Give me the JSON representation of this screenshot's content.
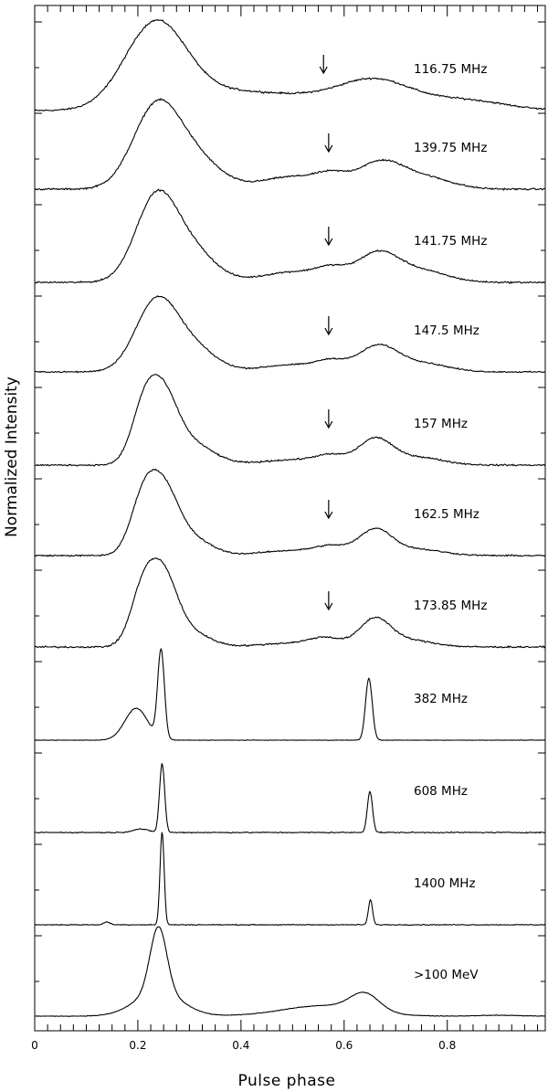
{
  "chart_data": {
    "type": "line",
    "xlabel": "Pulse phase",
    "ylabel": "Normalized Intensity",
    "xlim": [
      0,
      0.99
    ],
    "x_ticks": [
      "0",
      "0.2",
      "0.4",
      "0.6",
      "0.8"
    ],
    "x_tick_values": [
      0,
      0.2,
      0.4,
      0.6,
      0.8
    ],
    "series": [
      {
        "name": "116.75 MHz",
        "arrow_phase": 0.56,
        "noise": 0.012,
        "components": [
          [
            0.235,
            0.06,
            1.0
          ],
          [
            0.38,
            0.08,
            0.18
          ],
          [
            0.52,
            0.08,
            0.12
          ],
          [
            0.66,
            0.07,
            0.33
          ],
          [
            0.83,
            0.08,
            0.12
          ]
        ],
        "x": [
          0,
          0.1,
          0.16,
          0.2,
          0.24,
          0.3,
          0.35,
          0.42,
          0.5,
          0.57,
          0.62,
          0.66,
          0.72,
          0.8,
          0.9,
          0.98
        ],
        "y": [
          0.0,
          0.04,
          0.55,
          0.9,
          1.0,
          0.86,
          0.58,
          0.38,
          0.3,
          0.28,
          0.33,
          0.38,
          0.33,
          0.22,
          0.1,
          0.04
        ]
      },
      {
        "name": "139.75 MHz",
        "arrow_phase": 0.57,
        "noise": 0.012,
        "components": [
          [
            0.235,
            0.045,
            0.95
          ],
          [
            0.31,
            0.05,
            0.35
          ],
          [
            0.5,
            0.06,
            0.15
          ],
          [
            0.575,
            0.03,
            0.12
          ],
          [
            0.67,
            0.045,
            0.32
          ],
          [
            0.76,
            0.05,
            0.13
          ]
        ],
        "x": [
          0,
          0.1,
          0.15,
          0.2,
          0.245,
          0.3,
          0.35,
          0.42,
          0.5,
          0.57,
          0.62,
          0.66,
          0.72,
          0.8,
          0.9,
          0.98
        ],
        "y": [
          0.0,
          0.01,
          0.3,
          0.8,
          1.0,
          0.75,
          0.45,
          0.22,
          0.17,
          0.2,
          0.2,
          0.36,
          0.28,
          0.14,
          0.04,
          0.0
        ]
      },
      {
        "name": "141.75 MHz",
        "arrow_phase": 0.57,
        "noise": 0.011,
        "components": [
          [
            0.235,
            0.04,
            0.95
          ],
          [
            0.305,
            0.045,
            0.35
          ],
          [
            0.5,
            0.06,
            0.12
          ],
          [
            0.575,
            0.03,
            0.12
          ],
          [
            0.665,
            0.04,
            0.33
          ],
          [
            0.75,
            0.05,
            0.13
          ]
        ],
        "x": [
          0,
          0.12,
          0.16,
          0.2,
          0.245,
          0.3,
          0.35,
          0.42,
          0.5,
          0.57,
          0.62,
          0.66,
          0.72,
          0.8,
          0.9,
          0.98
        ],
        "y": [
          0.0,
          0.0,
          0.5,
          0.85,
          1.0,
          0.72,
          0.4,
          0.18,
          0.12,
          0.17,
          0.15,
          0.35,
          0.27,
          0.12,
          0.03,
          0.0
        ]
      },
      {
        "name": "147.5 MHz",
        "arrow_phase": 0.57,
        "noise": 0.011,
        "components": [
          [
            0.235,
            0.04,
            0.95
          ],
          [
            0.305,
            0.045,
            0.33
          ],
          [
            0.5,
            0.06,
            0.1
          ],
          [
            0.575,
            0.028,
            0.12
          ],
          [
            0.665,
            0.038,
            0.35
          ],
          [
            0.75,
            0.05,
            0.12
          ]
        ],
        "x": [
          0,
          0.12,
          0.16,
          0.2,
          0.245,
          0.3,
          0.35,
          0.42,
          0.5,
          0.57,
          0.62,
          0.66,
          0.72,
          0.8,
          0.9,
          0.98
        ],
        "y": [
          0.0,
          0.0,
          0.45,
          0.85,
          1.0,
          0.7,
          0.38,
          0.16,
          0.12,
          0.17,
          0.14,
          0.36,
          0.27,
          0.11,
          0.03,
          0.0
        ]
      },
      {
        "name": "157 MHz",
        "arrow_phase": 0.57,
        "noise": 0.011,
        "components": [
          [
            0.212,
            0.025,
            0.78
          ],
          [
            0.25,
            0.028,
            0.85
          ],
          [
            0.3,
            0.045,
            0.33
          ],
          [
            0.5,
            0.06,
            0.08
          ],
          [
            0.575,
            0.03,
            0.12
          ],
          [
            0.66,
            0.032,
            0.38
          ],
          [
            0.74,
            0.05,
            0.12
          ]
        ],
        "x": [
          0,
          0.12,
          0.16,
          0.21,
          0.23,
          0.25,
          0.3,
          0.35,
          0.42,
          0.5,
          0.57,
          0.62,
          0.66,
          0.72,
          0.8,
          0.98
        ],
        "y": [
          0.0,
          0.0,
          0.45,
          0.88,
          0.85,
          1.0,
          0.62,
          0.32,
          0.12,
          0.1,
          0.14,
          0.12,
          0.38,
          0.26,
          0.1,
          0.0
        ]
      },
      {
        "name": "162.5 MHz",
        "arrow_phase": 0.57,
        "noise": 0.011,
        "components": [
          [
            0.21,
            0.025,
            0.82
          ],
          [
            0.25,
            0.028,
            0.9
          ],
          [
            0.3,
            0.04,
            0.28
          ],
          [
            0.5,
            0.06,
            0.08
          ],
          [
            0.575,
            0.03,
            0.12
          ],
          [
            0.66,
            0.032,
            0.4
          ],
          [
            0.74,
            0.05,
            0.1
          ]
        ],
        "x": [
          0,
          0.12,
          0.16,
          0.21,
          0.23,
          0.25,
          0.3,
          0.35,
          0.42,
          0.5,
          0.57,
          0.62,
          0.66,
          0.72,
          0.8,
          0.98
        ],
        "y": [
          0.0,
          0.0,
          0.45,
          0.9,
          0.82,
          1.0,
          0.6,
          0.3,
          0.12,
          0.1,
          0.15,
          0.12,
          0.4,
          0.24,
          0.09,
          0.0
        ]
      },
      {
        "name": "173.85 MHz",
        "arrow_phase": 0.57,
        "noise": 0.012,
        "components": [
          [
            0.21,
            0.024,
            0.85
          ],
          [
            0.25,
            0.026,
            0.95
          ],
          [
            0.295,
            0.04,
            0.25
          ],
          [
            0.5,
            0.06,
            0.06
          ],
          [
            0.565,
            0.03,
            0.12
          ],
          [
            0.66,
            0.03,
            0.43
          ],
          [
            0.73,
            0.045,
            0.1
          ]
        ],
        "x": [
          0,
          0.12,
          0.16,
          0.21,
          0.23,
          0.25,
          0.3,
          0.35,
          0.42,
          0.5,
          0.57,
          0.62,
          0.66,
          0.72,
          0.8,
          0.98
        ],
        "y": [
          0.0,
          0.0,
          0.4,
          0.9,
          0.78,
          1.0,
          0.55,
          0.25,
          0.08,
          0.08,
          0.13,
          0.1,
          0.43,
          0.22,
          0.06,
          0.0
        ]
      },
      {
        "name": "382 MHz",
        "noise": 0.003,
        "components": [
          [
            0.197,
            0.022,
            0.36
          ],
          [
            0.245,
            0.0065,
            1.0
          ],
          [
            0.648,
            0.0065,
            0.7
          ]
        ],
        "x": [
          0,
          0.15,
          0.197,
          0.23,
          0.245,
          0.26,
          0.4,
          0.63,
          0.648,
          0.665,
          0.8,
          0.98
        ],
        "y": [
          0.0,
          0.02,
          0.36,
          0.1,
          1.0,
          0.02,
          0.0,
          0.0,
          0.7,
          0.0,
          0.0,
          0.0
        ]
      },
      {
        "name": "608 MHz",
        "noise": 0.01,
        "components": [
          [
            0.205,
            0.015,
            0.05
          ],
          [
            0.247,
            0.005,
            1.0
          ],
          [
            0.65,
            0.005,
            0.6
          ]
        ],
        "x": [
          0,
          0.2,
          0.235,
          0.247,
          0.26,
          0.4,
          0.64,
          0.65,
          0.66,
          0.8,
          0.98
        ],
        "y": [
          0.0,
          0.04,
          0.03,
          1.0,
          0.0,
          0.0,
          0.0,
          0.6,
          0.0,
          0.0,
          0.0
        ]
      },
      {
        "name": "1400 MHz",
        "noise": 0.006,
        "components": [
          [
            0.14,
            0.006,
            0.03
          ],
          [
            0.247,
            0.004,
            1.0
          ],
          [
            0.651,
            0.004,
            0.27
          ]
        ],
        "x": [
          0,
          0.14,
          0.24,
          0.247,
          0.255,
          0.4,
          0.645,
          0.651,
          0.658,
          0.8,
          0.98
        ],
        "y": [
          0.0,
          0.03,
          0.0,
          1.0,
          0.0,
          0.0,
          0.0,
          0.27,
          0.0,
          0.0,
          0.0
        ]
      },
      {
        "name": ">100 MeV",
        "noise": 0.004,
        "components": [
          [
            0.24,
            0.016,
            0.75
          ],
          [
            0.24,
            0.045,
            0.28
          ],
          [
            0.64,
            0.028,
            0.2
          ],
          [
            0.56,
            0.08,
            0.12
          ],
          [
            0.9,
            0.04,
            0.01
          ]
        ],
        "x": [
          0,
          0.15,
          0.2,
          0.24,
          0.28,
          0.35,
          0.5,
          0.6,
          0.64,
          0.7,
          0.8,
          0.98
        ],
        "y": [
          0.0,
          0.02,
          0.2,
          1.0,
          0.15,
          0.03,
          0.06,
          0.25,
          0.33,
          0.05,
          0.0,
          0.0
        ]
      }
    ]
  }
}
